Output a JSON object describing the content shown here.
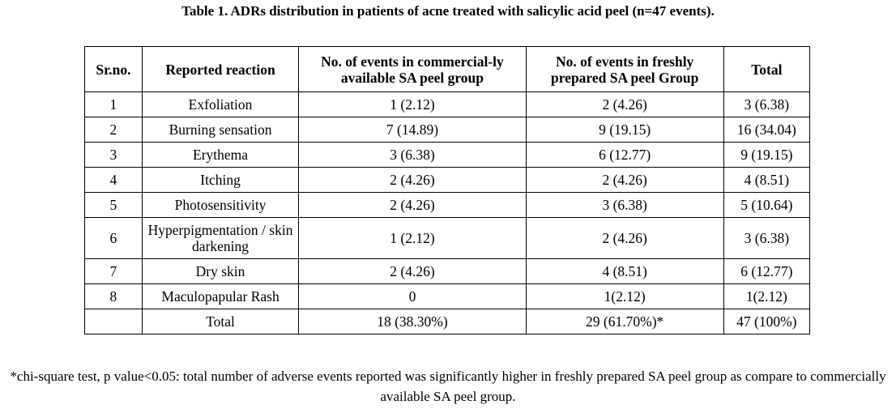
{
  "title": "Table 1. ADRs distribution in patients of acne treated with salicylic acid peel (n=47 events).",
  "headers": [
    "Sr.no.",
    "Reported reaction",
    "No. of events in commercial-ly available SA peel group",
    "No. of events in freshly prepared SA peel Group",
    "Total"
  ],
  "rows": [
    {
      "sr": "1",
      "reaction": "Exfoliation",
      "commercial": "1 (2.12)",
      "fresh": "2 (4.26)",
      "total": "3 (6.38)"
    },
    {
      "sr": "2",
      "reaction": "Burning sensation",
      "commercial": "7 (14.89)",
      "fresh": "9 (19.15)",
      "total": "16 (34.04)"
    },
    {
      "sr": "3",
      "reaction": "Erythema",
      "commercial": "3 (6.38)",
      "fresh": "6 (12.77)",
      "total": "9 (19.15)"
    },
    {
      "sr": "4",
      "reaction": "Itching",
      "commercial": "2 (4.26)",
      "fresh": "2 (4.26)",
      "total": "4 (8.51)"
    },
    {
      "sr": "5",
      "reaction": "Photosensitivity",
      "commercial": "2 (4.26)",
      "fresh": "3 (6.38)",
      "total": "5 (10.64)"
    },
    {
      "sr": "6",
      "reaction": "Hyperpigmentation / skin darkening",
      "commercial": "1 (2.12)",
      "fresh": "2 (4.26)",
      "total": "3 (6.38)"
    },
    {
      "sr": "7",
      "reaction": "Dry skin",
      "commercial": "2 (4.26)",
      "fresh": "4 (8.51)",
      "total": "6 (12.77)"
    },
    {
      "sr": "8",
      "reaction": "Maculopapular Rash",
      "commercial": "0",
      "fresh": "1(2.12)",
      "total": "1(2.12)"
    }
  ],
  "total_row": {
    "label": "Total",
    "commercial": "18 (38.30%)",
    "fresh": "29 (61.70%)*",
    "total": "47 (100%)"
  },
  "footnote": "*chi-square test, p value<0.05: total number of adverse events reported was significantly higher in freshly prepared SA peel group as compare to commercially available SA peel group."
}
